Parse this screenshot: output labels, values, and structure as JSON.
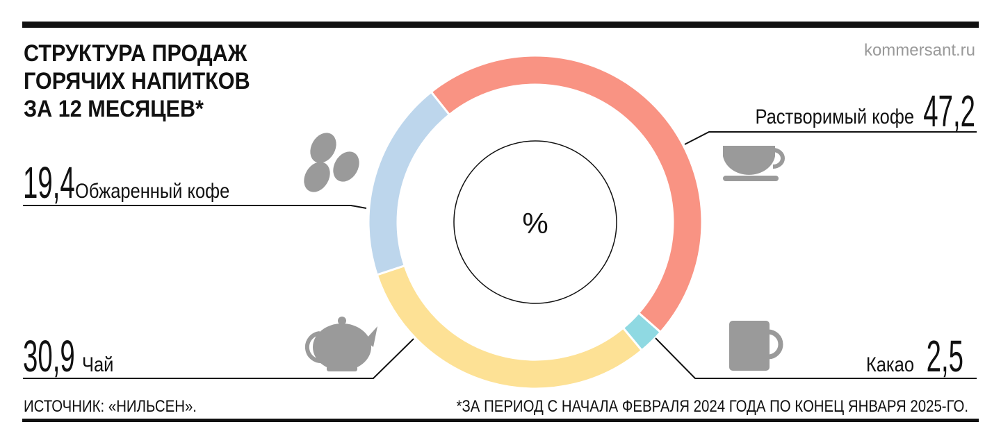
{
  "chart_data": {
    "type": "pie",
    "title": [
      "СТРУКТУРА ПРОДАЖ",
      "ГОРЯЧИХ НАПИТКОВ",
      "ЗА 12 МЕСЯЦЕВ*"
    ],
    "site": "kommersant.ru",
    "center_label": "%",
    "categories": [
      "Растворимый кофе",
      "Какао",
      "Чай",
      "Обжаренный кофе"
    ],
    "values": [
      47.2,
      2.5,
      30.9,
      19.4
    ],
    "value_labels": [
      "47,2",
      "2,5",
      "30,9",
      "19,4"
    ],
    "colors": [
      "#f99383",
      "#8fd9e2",
      "#fde195",
      "#bdd6ec"
    ],
    "source": "ИСТОЧНИК: «НИЛЬСЕН».",
    "footnote": "*ЗА ПЕРИОД С НАЧАЛА ФЕВРАЛЯ 2024 ГОДА ПО КОНЕЦ ЯНВАРЯ 2025-ГО."
  }
}
